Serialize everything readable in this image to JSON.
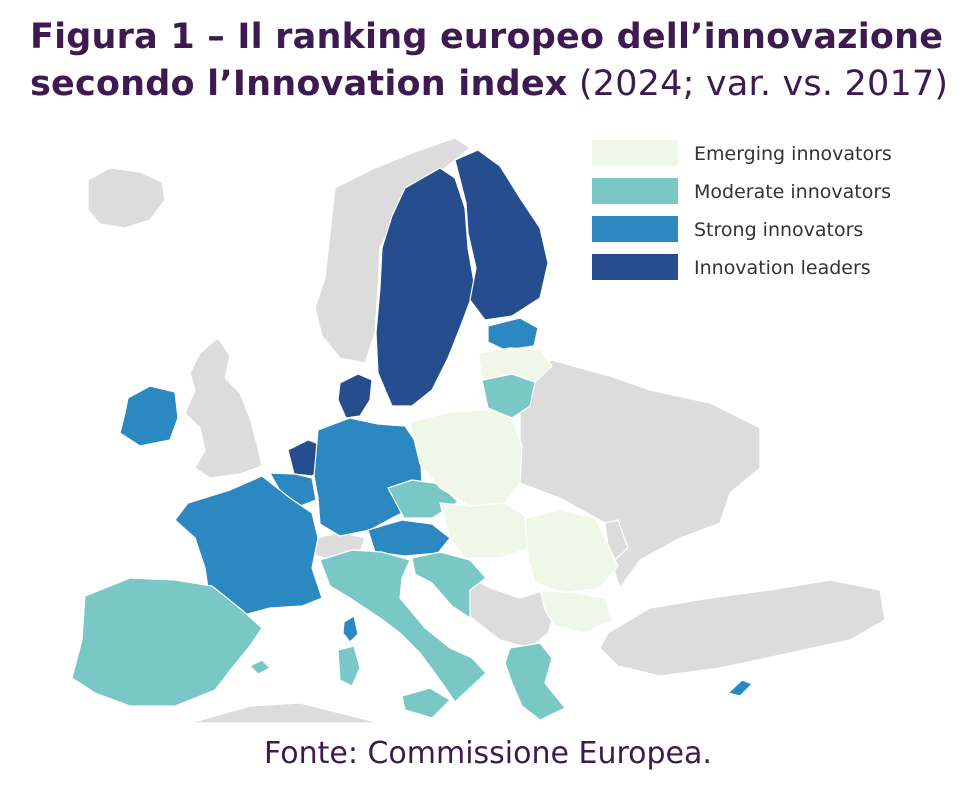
{
  "title": {
    "bold": "Figura 1 – Il ranking europeo  dell’innovazione secondo l’Innovation index",
    "normal": " (2024; var. vs. 2017)"
  },
  "legend": [
    {
      "label": "Emerging innovators",
      "color": "#eef7e8"
    },
    {
      "label": "Moderate innovators",
      "color": "#79c8c6"
    },
    {
      "label": "Strong innovators",
      "color": "#2b88c0"
    },
    {
      "label": "Innovation leaders",
      "color": "#264e8f"
    }
  ],
  "colors": {
    "non_eu": "#dcdcdc",
    "border": "#ffffff"
  },
  "source": "Fonte: Commissione Europea.",
  "countries": {
    "innovation_leaders": [
      "Sweden",
      "Finland",
      "Denmark",
      "Netherlands"
    ],
    "strong_innovators": [
      "Estonia",
      "Ireland",
      "Germany",
      "France",
      "Belgium",
      "Luxembourg",
      "Austria",
      "Cyprus"
    ],
    "moderate_innovators": [
      "Lithuania",
      "Czechia",
      "Slovenia",
      "Italy",
      "Spain",
      "Portugal",
      "Malta",
      "Greece",
      "Croatia"
    ],
    "emerging_innovators": [
      "Latvia",
      "Poland",
      "Hungary",
      "Romania",
      "Bulgaria",
      "Slovakia"
    ]
  }
}
